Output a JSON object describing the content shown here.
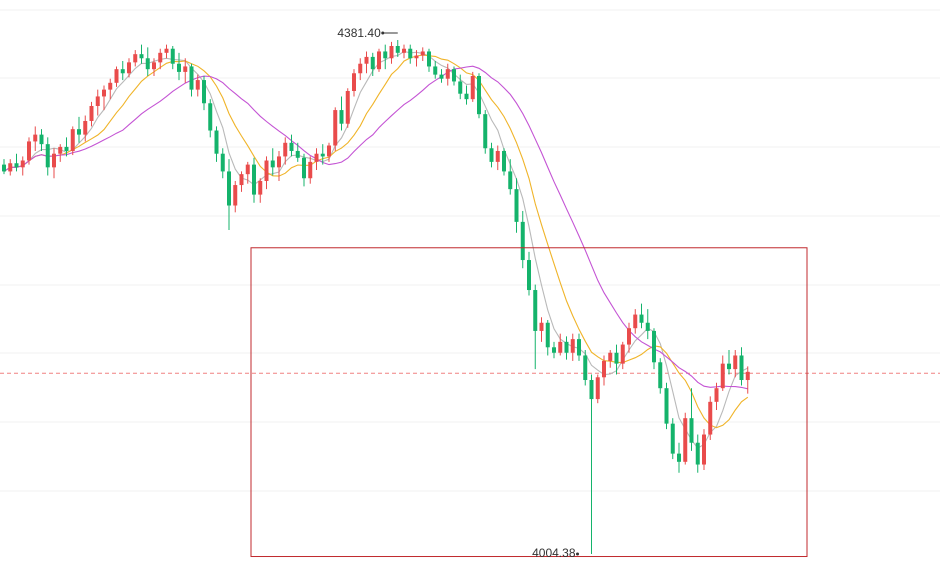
{
  "chart_data": {
    "type": "candlestick",
    "high_label": "4381.40",
    "low_label": "4004.38",
    "reference_line": {
      "value": 4137,
      "style": "dashed",
      "color": "#f08080"
    },
    "colors": {
      "up": "#e94b4b",
      "down": "#14b36b",
      "ma_fast": "#b9b9b9",
      "ma_medium": "#f0b429",
      "ma_slow": "#c454d4",
      "annotation_box": "#c0282d",
      "grid": "#f1f1f1"
    },
    "grid": true,
    "annotation_box": {
      "from_candle": 36,
      "to_candle": 116,
      "price_top": 4229,
      "price_bottom": 4004
    },
    "candles": [
      [
        4290,
        4294,
        4283,
        4285
      ],
      [
        4285,
        4294,
        4282,
        4291
      ],
      [
        4291,
        4298,
        4285,
        4288
      ],
      [
        4288,
        4296,
        4282,
        4293
      ],
      [
        4293,
        4310,
        4290,
        4307
      ],
      [
        4307,
        4318,
        4300,
        4312
      ],
      [
        4312,
        4316,
        4300,
        4305
      ],
      [
        4305,
        4310,
        4282,
        4288
      ],
      [
        4288,
        4302,
        4280,
        4298
      ],
      [
        4298,
        4305,
        4292,
        4303
      ],
      [
        4303,
        4310,
        4296,
        4300
      ],
      [
        4300,
        4318,
        4297,
        4316
      ],
      [
        4316,
        4325,
        4306,
        4312
      ],
      [
        4312,
        4326,
        4307,
        4322
      ],
      [
        4322,
        4336,
        4318,
        4333
      ],
      [
        4333,
        4345,
        4326,
        4340
      ],
      [
        4340,
        4348,
        4330,
        4345
      ],
      [
        4345,
        4353,
        4338,
        4350
      ],
      [
        4350,
        4362,
        4347,
        4360
      ],
      [
        4360,
        4366,
        4352,
        4357
      ],
      [
        4357,
        4368,
        4354,
        4365
      ],
      [
        4365,
        4374,
        4362,
        4371
      ],
      [
        4371,
        4378,
        4364,
        4368
      ],
      [
        4368,
        4376,
        4355,
        4360
      ],
      [
        4360,
        4368,
        4355,
        4365
      ],
      [
        4365,
        4375,
        4360,
        4372
      ],
      [
        4372,
        4378,
        4368,
        4375
      ],
      [
        4375,
        4377,
        4360,
        4364
      ],
      [
        4364,
        4372,
        4352,
        4358
      ],
      [
        4358,
        4368,
        4350,
        4362
      ],
      [
        4362,
        4364,
        4340,
        4345
      ],
      [
        4345,
        4356,
        4340,
        4352
      ],
      [
        4352,
        4355,
        4330,
        4335
      ],
      [
        4335,
        4338,
        4310,
        4315
      ],
      [
        4315,
        4318,
        4292,
        4298
      ],
      [
        4298,
        4302,
        4280,
        4285
      ],
      [
        4285,
        4294,
        4242,
        4260
      ],
      [
        4260,
        4278,
        4255,
        4275
      ],
      [
        4275,
        4285,
        4270,
        4283
      ],
      [
        4283,
        4292,
        4276,
        4290
      ],
      [
        4290,
        4295,
        4262,
        4268
      ],
      [
        4268,
        4280,
        4262,
        4278
      ],
      [
        4278,
        4296,
        4272,
        4293
      ],
      [
        4293,
        4302,
        4282,
        4288
      ],
      [
        4288,
        4300,
        4278,
        4296
      ],
      [
        4296,
        4310,
        4290,
        4306
      ],
      [
        4306,
        4312,
        4296,
        4300
      ],
      [
        4300,
        4306,
        4292,
        4295
      ],
      [
        4295,
        4298,
        4274,
        4280
      ],
      [
        4280,
        4296,
        4276,
        4292
      ],
      [
        4292,
        4302,
        4286,
        4298
      ],
      [
        4298,
        4305,
        4290,
        4296
      ],
      [
        4296,
        4306,
        4292,
        4304
      ],
      [
        4304,
        4332,
        4300,
        4330
      ],
      [
        4330,
        4340,
        4315,
        4320
      ],
      [
        4320,
        4346,
        4317,
        4344
      ],
      [
        4344,
        4360,
        4340,
        4357
      ],
      [
        4357,
        4368,
        4352,
        4364
      ],
      [
        4364,
        4373,
        4357,
        4369
      ],
      [
        4369,
        4372,
        4355,
        4360
      ],
      [
        4360,
        4375,
        4358,
        4373
      ],
      [
        4373,
        4378,
        4360,
        4368
      ],
      [
        4368,
        4380,
        4364,
        4377
      ],
      [
        4377,
        4381.4,
        4369,
        4372
      ],
      [
        4372,
        4378,
        4368,
        4375
      ],
      [
        4375,
        4378,
        4364,
        4368
      ],
      [
        4368,
        4374,
        4362,
        4370
      ],
      [
        4370,
        4376,
        4366,
        4373
      ],
      [
        4373,
        4375,
        4358,
        4362
      ],
      [
        4362,
        4366,
        4353,
        4356
      ],
      [
        4356,
        4360,
        4350,
        4353
      ],
      [
        4353,
        4364,
        4348,
        4360
      ],
      [
        4360,
        4362,
        4348,
        4351
      ],
      [
        4351,
        4356,
        4338,
        4342
      ],
      [
        4342,
        4348,
        4334,
        4338
      ],
      [
        4338,
        4358,
        4336,
        4355
      ],
      [
        4355,
        4357,
        4324,
        4327
      ],
      [
        4327,
        4330,
        4298,
        4302
      ],
      [
        4302,
        4306,
        4288,
        4292
      ],
      [
        4292,
        4304,
        4286,
        4300
      ],
      [
        4300,
        4302,
        4282,
        4285
      ],
      [
        4285,
        4294,
        4268,
        4272
      ],
      [
        4272,
        4280,
        4240,
        4248
      ],
      [
        4248,
        4256,
        4214,
        4220
      ],
      [
        4220,
        4226,
        4194,
        4198
      ],
      [
        4198,
        4202,
        4140,
        4168
      ],
      [
        4168,
        4178,
        4160,
        4174
      ],
      [
        4174,
        4176,
        4150,
        4156
      ],
      [
        4156,
        4160,
        4148,
        4152
      ],
      [
        4152,
        4166,
        4150,
        4160
      ],
      [
        4160,
        4164,
        4147,
        4152
      ],
      [
        4152,
        4166,
        4146,
        4162
      ],
      [
        4162,
        4166,
        4146,
        4150
      ],
      [
        4150,
        4154,
        4128,
        4132
      ],
      [
        4132,
        4136,
        4004.38,
        4118
      ],
      [
        4118,
        4136,
        4115,
        4134
      ],
      [
        4134,
        4150,
        4128,
        4146
      ],
      [
        4146,
        4154,
        4141,
        4152
      ],
      [
        4152,
        4158,
        4136,
        4144
      ],
      [
        4144,
        4160,
        4140,
        4158
      ],
      [
        4158,
        4174,
        4152,
        4170
      ],
      [
        4170,
        4184,
        4166,
        4180
      ],
      [
        4180,
        4188,
        4170,
        4174
      ],
      [
        4174,
        4184,
        4162,
        4168
      ],
      [
        4168,
        4170,
        4140,
        4145
      ],
      [
        4145,
        4148,
        4122,
        4126
      ],
      [
        4126,
        4130,
        4096,
        4100
      ],
      [
        4100,
        4104,
        4074,
        4078
      ],
      [
        4078,
        4086,
        4064,
        4072
      ],
      [
        4072,
        4108,
        4070,
        4104
      ],
      [
        4104,
        4126,
        4080,
        4086
      ],
      [
        4086,
        4092,
        4064,
        4070
      ],
      [
        4070,
        4096,
        4066,
        4092
      ],
      [
        4092,
        4120,
        4088,
        4116
      ],
      [
        4116,
        4130,
        4110,
        4126
      ],
      [
        4126,
        4150,
        4124,
        4144
      ],
      [
        4144,
        4154,
        4136,
        4140
      ],
      [
        4140,
        4154,
        4134,
        4150
      ],
      [
        4150,
        4156,
        4128,
        4132
      ],
      [
        4132,
        4142,
        4122,
        4138
      ]
    ]
  }
}
